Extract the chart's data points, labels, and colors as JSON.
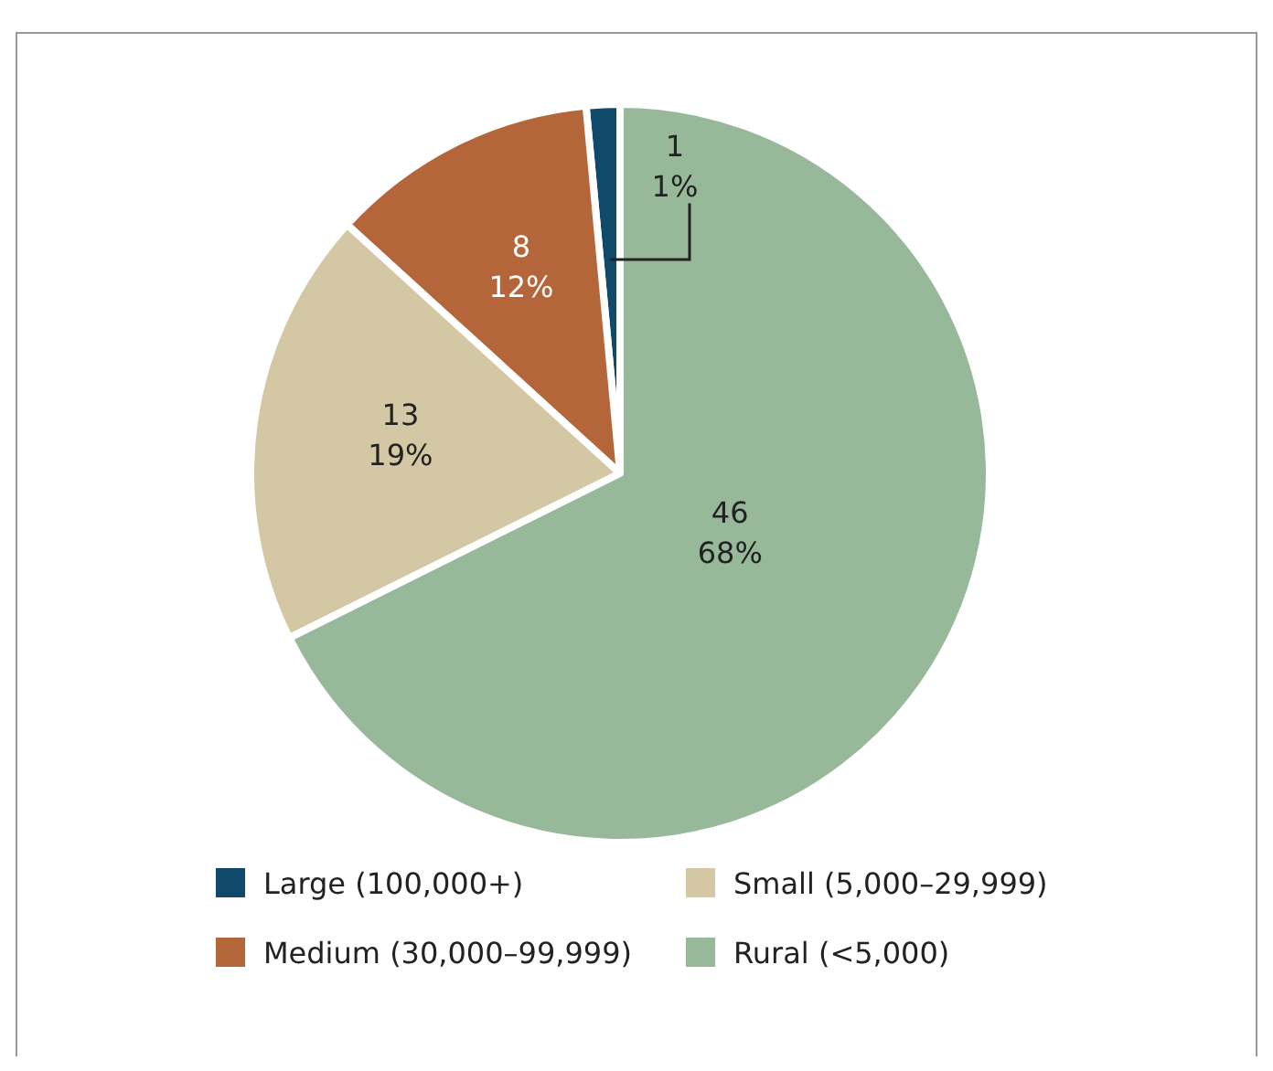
{
  "chart_data": {
    "type": "pie",
    "categories": [
      "Large (100,000+)",
      "Medium (30,000–99,999)",
      "Small (5,000–29,999)",
      "Rural (<5,000)"
    ],
    "values": [
      1,
      8,
      13,
      46
    ],
    "colors": [
      "#0f4a6b",
      "#b5653a",
      "#d4c7a3",
      "#97b99a"
    ],
    "value_labels": [
      "1\n1%",
      "8\n12%",
      "13\n19%",
      "46\n68%"
    ],
    "legend": "bottom"
  }
}
